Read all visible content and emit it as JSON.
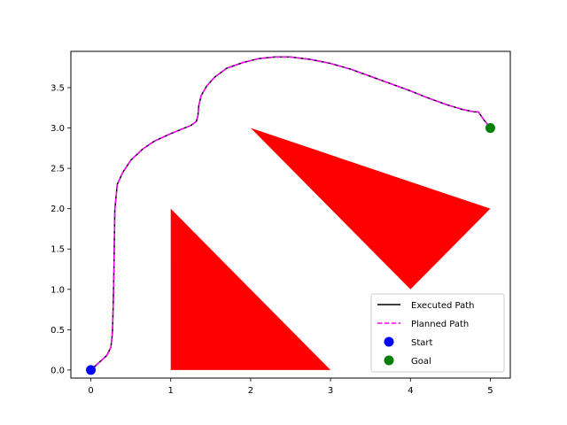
{
  "chart_data": {
    "type": "scatter",
    "title": "",
    "xlabel": "",
    "ylabel": "",
    "xlim": [
      -0.25,
      5.25
    ],
    "ylim": [
      -0.1,
      3.95
    ],
    "xticks": [
      0,
      1,
      2,
      3,
      4,
      5
    ],
    "xtick_labels": [
      "0",
      "1",
      "2",
      "3",
      "4",
      "5"
    ],
    "yticks": [
      0.0,
      0.5,
      1.0,
      1.5,
      2.0,
      2.5,
      3.0,
      3.5
    ],
    "ytick_labels": [
      "0.0",
      "0.5",
      "1.0",
      "1.5",
      "2.0",
      "2.5",
      "3.0",
      "3.5"
    ],
    "grid": false,
    "legend_position": "lower-right",
    "obstacles": [
      {
        "color": "#ff0000",
        "vertices": [
          [
            1,
            0
          ],
          [
            1,
            2
          ],
          [
            3,
            0
          ]
        ]
      },
      {
        "color": "#ff0000",
        "vertices": [
          [
            2,
            3
          ],
          [
            5,
            2
          ],
          [
            4,
            1
          ]
        ]
      }
    ],
    "series": [
      {
        "name": "Executed Path",
        "kind": "line",
        "color": "#000000",
        "style": "solid",
        "x": [
          0,
          0.1,
          0.2,
          0.25,
          0.27,
          0.28,
          0.29,
          0.3,
          0.33,
          0.4,
          0.5,
          0.65,
          0.8,
          1.0,
          1.15,
          1.25,
          1.32,
          1.34,
          1.35,
          1.38,
          1.45,
          1.55,
          1.7,
          1.9,
          2.1,
          2.3,
          2.5,
          2.75,
          3.0,
          3.25,
          3.5,
          3.75,
          4.0,
          4.2,
          4.45,
          4.65,
          4.8,
          4.85,
          4.92,
          5.0
        ],
        "y": [
          0,
          0.09,
          0.18,
          0.28,
          0.45,
          0.8,
          1.3,
          1.98,
          2.3,
          2.45,
          2.6,
          2.74,
          2.84,
          2.93,
          2.99,
          3.03,
          3.08,
          3.15,
          3.27,
          3.4,
          3.52,
          3.63,
          3.74,
          3.81,
          3.86,
          3.88,
          3.88,
          3.85,
          3.8,
          3.73,
          3.64,
          3.55,
          3.46,
          3.38,
          3.29,
          3.23,
          3.2,
          3.2,
          3.1,
          3.0
        ]
      },
      {
        "name": "Planned Path",
        "kind": "line",
        "color": "#ff00ff",
        "style": "dashed",
        "x": [
          0,
          0.1,
          0.2,
          0.25,
          0.27,
          0.28,
          0.29,
          0.3,
          0.33,
          0.4,
          0.5,
          0.65,
          0.8,
          1.0,
          1.15,
          1.25,
          1.32,
          1.34,
          1.35,
          1.38,
          1.45,
          1.55,
          1.7,
          1.9,
          2.1,
          2.3,
          2.5,
          2.75,
          3.0,
          3.25,
          3.5,
          3.75,
          4.0,
          4.2,
          4.45,
          4.65,
          4.8,
          4.85,
          4.92,
          5.0
        ],
        "y": [
          0,
          0.09,
          0.18,
          0.28,
          0.45,
          0.8,
          1.3,
          1.98,
          2.3,
          2.45,
          2.6,
          2.74,
          2.84,
          2.93,
          2.99,
          3.03,
          3.08,
          3.15,
          3.27,
          3.4,
          3.52,
          3.63,
          3.74,
          3.81,
          3.86,
          3.88,
          3.88,
          3.85,
          3.8,
          3.73,
          3.64,
          3.55,
          3.46,
          3.38,
          3.29,
          3.23,
          3.2,
          3.2,
          3.1,
          3.0
        ]
      },
      {
        "name": "Start",
        "kind": "marker",
        "color": "#0000ff",
        "x": [
          0
        ],
        "y": [
          0
        ]
      },
      {
        "name": "Goal",
        "kind": "marker",
        "color": "#008000",
        "x": [
          5
        ],
        "y": [
          3
        ]
      }
    ]
  }
}
